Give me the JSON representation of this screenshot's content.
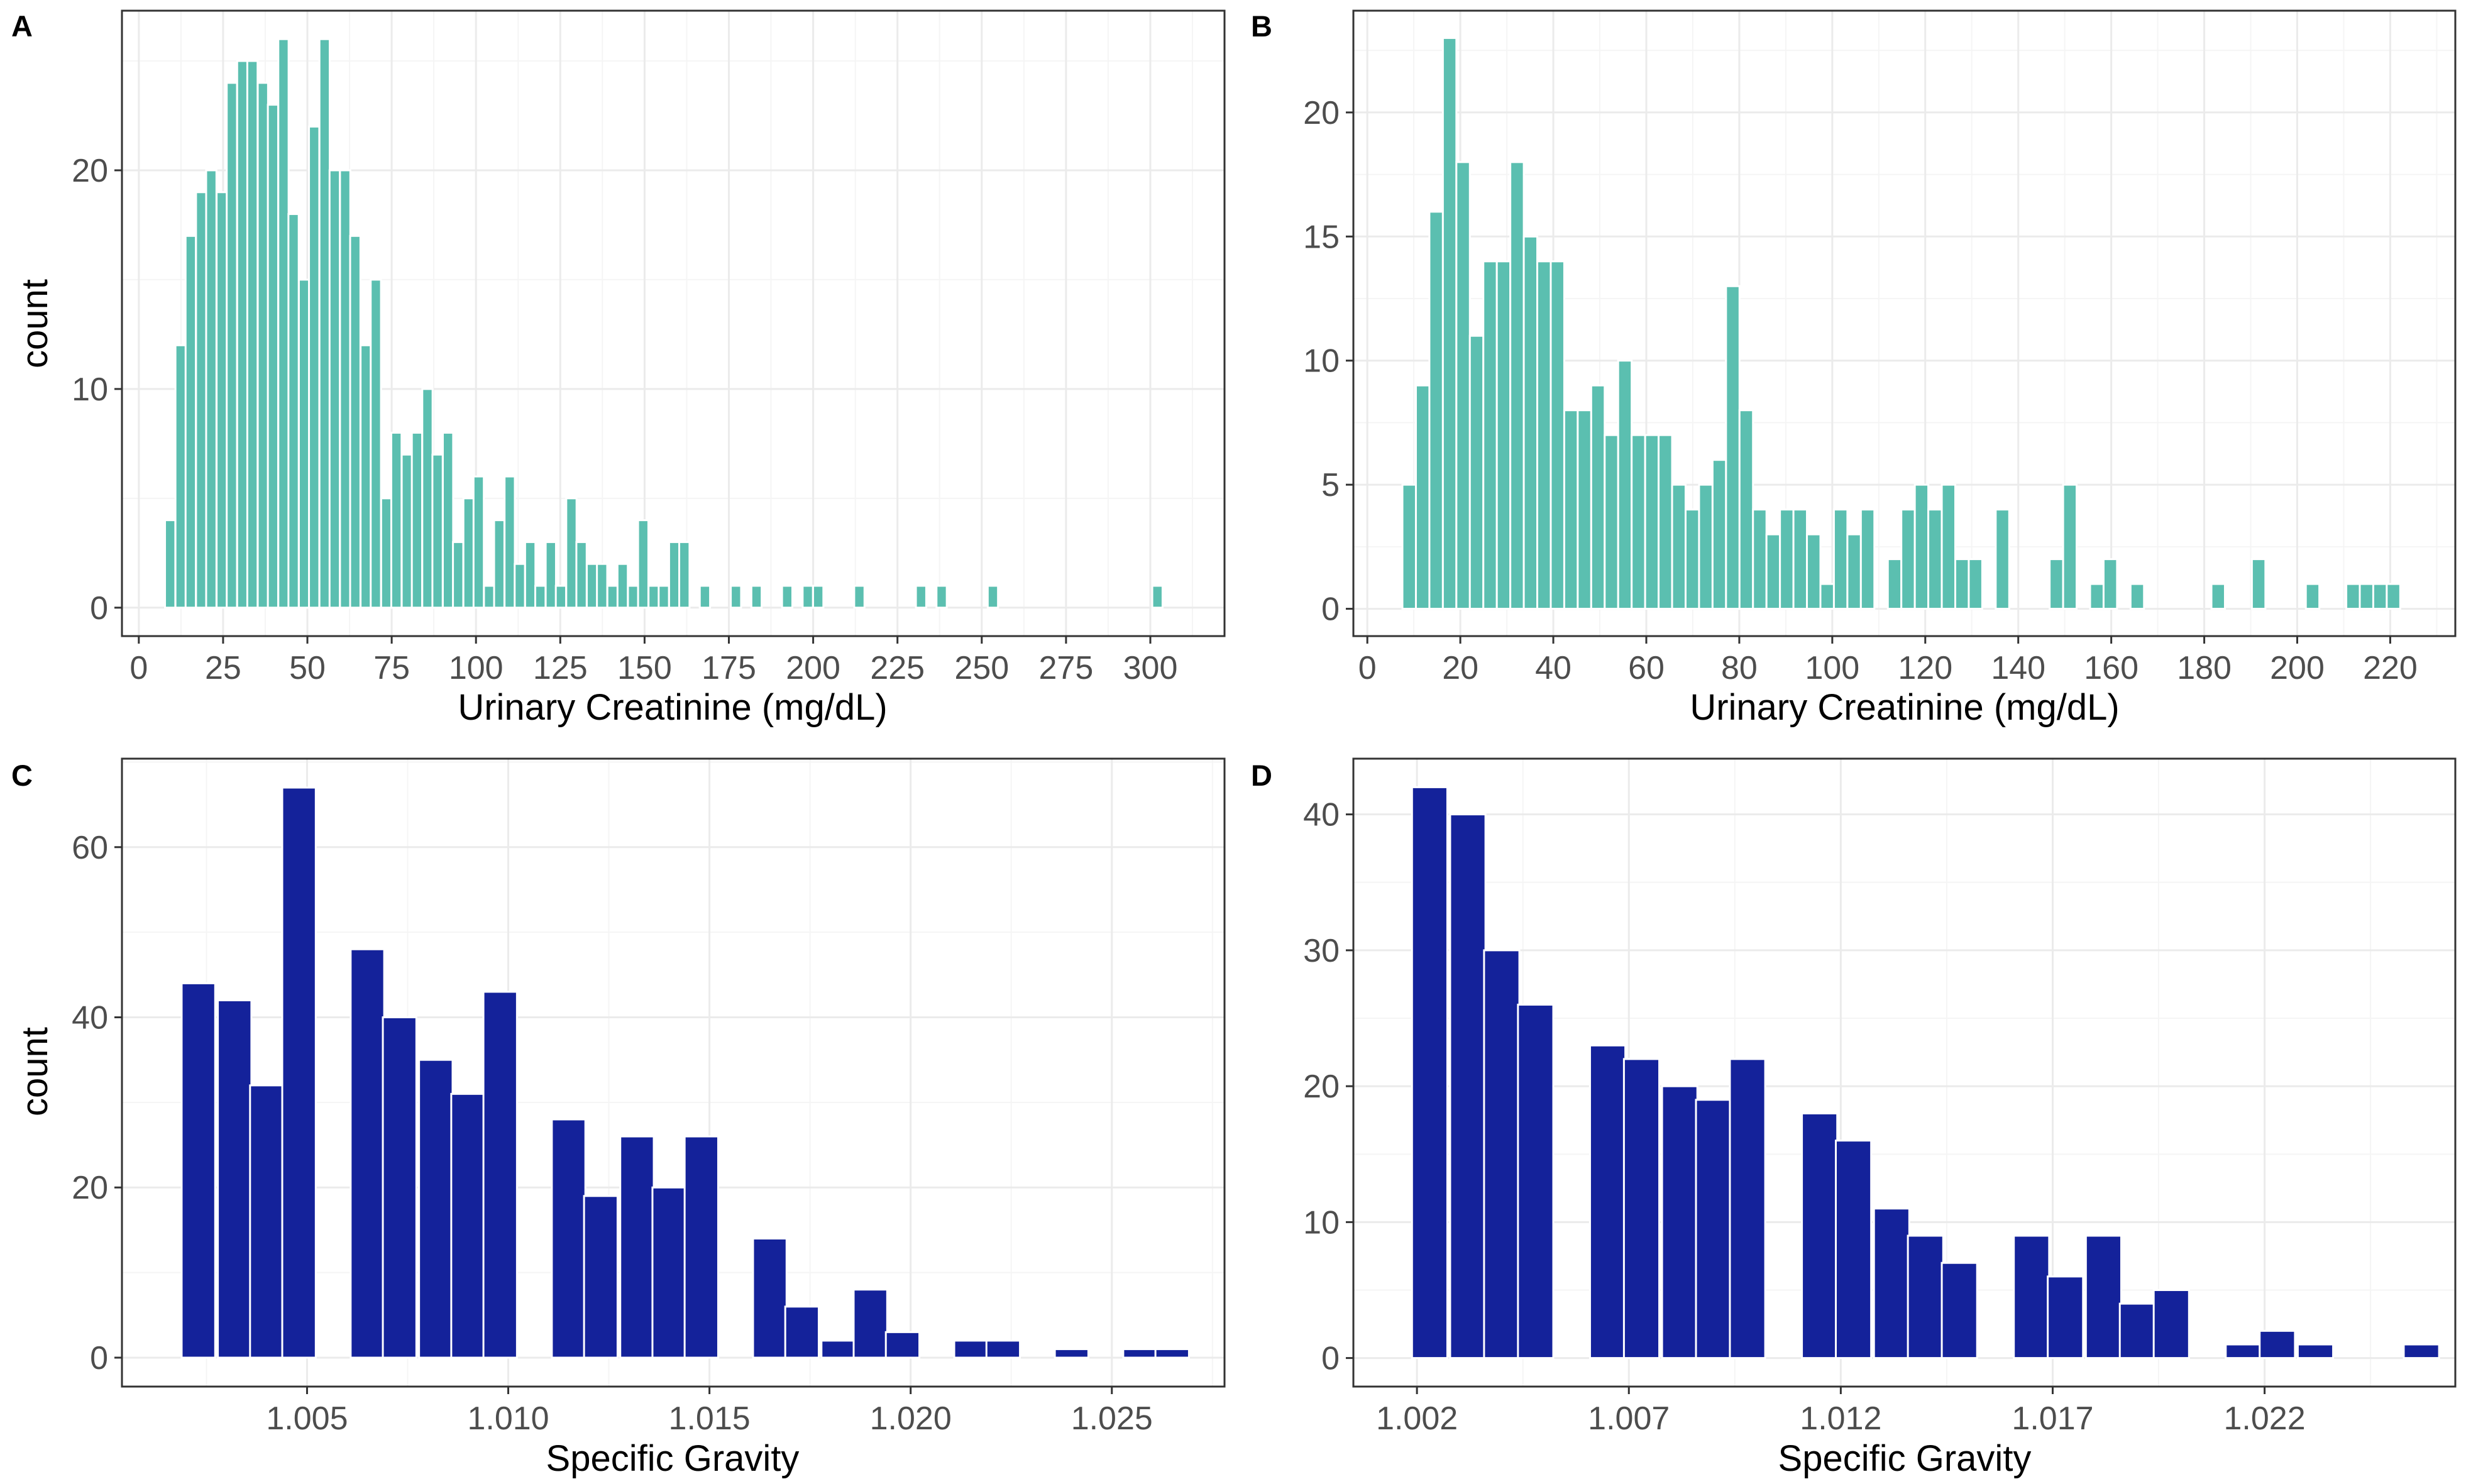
{
  "figure": {
    "panel_labels": [
      "A",
      "B",
      "C",
      "D"
    ]
  },
  "colors": {
    "teal": "#5bbfb0",
    "navy": "#14229a",
    "grid_major": "#ebebeb",
    "grid_minor": "#f5f5f5",
    "panel_border": "#333333",
    "tick_text": "#4d4d4d"
  },
  "chart_data": [
    {
      "panel": "A",
      "type": "bar",
      "subtype": "histogram",
      "xlabel": "Urinary Creatinine (mg/dL)",
      "ylabel": "count",
      "xlim": [
        -5,
        322
      ],
      "ylim": [
        -1.3,
        27.3
      ],
      "x_ticks": [
        0,
        25,
        50,
        75,
        100,
        125,
        150,
        175,
        200,
        225,
        250,
        275,
        300
      ],
      "x_tick_labels": [
        "0",
        "25",
        "50",
        "75",
        "100",
        "125",
        "150",
        "175",
        "200",
        "225",
        "250",
        "275",
        "300"
      ],
      "y_ticks": [
        0,
        10,
        20
      ],
      "y_tick_labels": [
        "0",
        "10",
        "20"
      ],
      "bin_width": 3.05,
      "x": [
        9.3,
        12.4,
        15.4,
        18.5,
        21.5,
        24.6,
        27.6,
        30.7,
        33.7,
        36.8,
        39.8,
        42.9,
        45.9,
        49.0,
        52.0,
        55.1,
        58.1,
        61.2,
        64.2,
        67.3,
        70.3,
        73.4,
        76.4,
        79.5,
        82.5,
        85.6,
        88.6,
        91.7,
        94.7,
        97.8,
        100.8,
        103.9,
        106.9,
        110.0,
        113.0,
        116.1,
        119.1,
        122.2,
        125.2,
        128.3,
        131.3,
        134.4,
        137.4,
        140.5,
        143.5,
        146.6,
        149.6,
        152.7,
        155.7,
        158.8,
        161.8,
        167.9,
        177.1,
        183.2,
        192.3,
        198.4,
        201.5,
        213.7,
        232.0,
        238.1,
        253.3,
        302.1
      ],
      "values": [
        4,
        12,
        17,
        19,
        20,
        19,
        24,
        25,
        25,
        24,
        23,
        26,
        18,
        15,
        22,
        26,
        20,
        20,
        17,
        12,
        15,
        5,
        8,
        7,
        8,
        10,
        7,
        8,
        3,
        5,
        6,
        1,
        4,
        6,
        2,
        3,
        1,
        3,
        1,
        5,
        3,
        2,
        2,
        1,
        2,
        1,
        4,
        1,
        1,
        3,
        3,
        1,
        1,
        1,
        1,
        1,
        1,
        1,
        1,
        1,
        1,
        1
      ],
      "color": "#5bbfb0"
    },
    {
      "panel": "B",
      "type": "bar",
      "subtype": "histogram",
      "xlabel": "Urinary Creatinine (mg/dL)",
      "ylabel": "",
      "xlim": [
        -3,
        234
      ],
      "ylim": [
        -1.1,
        24.1
      ],
      "x_ticks": [
        0,
        20,
        40,
        60,
        80,
        100,
        120,
        140,
        160,
        180,
        200,
        220
      ],
      "x_tick_labels": [
        "0",
        "20",
        "40",
        "60",
        "80",
        "100",
        "120",
        "140",
        "160",
        "180",
        "200",
        "220"
      ],
      "y_ticks": [
        0,
        5,
        10,
        15,
        20
      ],
      "y_tick_labels": [
        "0",
        "5",
        "10",
        "15",
        "20"
      ],
      "bin_width": 2.9,
      "x": [
        9.0,
        11.9,
        14.8,
        17.7,
        20.6,
        23.5,
        26.4,
        29.3,
        32.2,
        35.1,
        38.0,
        40.9,
        43.8,
        46.7,
        49.6,
        52.5,
        55.4,
        58.3,
        61.2,
        64.1,
        67.0,
        69.9,
        72.8,
        75.7,
        78.6,
        81.5,
        84.4,
        87.3,
        90.2,
        93.1,
        96.0,
        98.9,
        101.8,
        104.7,
        107.6,
        113.4,
        116.3,
        119.2,
        122.1,
        125.0,
        127.9,
        130.8,
        136.6,
        148.2,
        151.1,
        156.9,
        159.8,
        165.6,
        183.0,
        191.7,
        203.3,
        212.0,
        214.9,
        217.8,
        220.7
      ],
      "values": [
        5,
        9,
        16,
        23,
        18,
        11,
        14,
        14,
        18,
        15,
        14,
        14,
        8,
        8,
        9,
        7,
        10,
        7,
        7,
        7,
        5,
        4,
        5,
        6,
        13,
        8,
        4,
        3,
        4,
        4,
        3,
        1,
        4,
        3,
        4,
        2,
        4,
        5,
        4,
        5,
        2,
        2,
        4,
        2,
        5,
        1,
        2,
        1,
        1,
        2,
        1,
        1,
        1,
        1,
        1
      ],
      "color": "#5bbfb0"
    },
    {
      "panel": "C",
      "type": "bar",
      "subtype": "histogram",
      "xlabel": "Specific Gravity",
      "ylabel": "count",
      "xlim": [
        1.0004,
        1.0278
      ],
      "ylim": [
        -3.4,
        70.4
      ],
      "x_ticks": [
        1.005,
        1.01,
        1.015,
        1.02,
        1.025
      ],
      "x_tick_labels": [
        "1.005",
        "1.010",
        "1.015",
        "1.020",
        "1.025"
      ],
      "y_ticks": [
        0,
        20,
        40,
        60
      ],
      "y_tick_labels": [
        "0",
        "20",
        "40",
        "60"
      ],
      "bin_width": 0.000833,
      "x": [
        1.0023,
        1.0032,
        1.004,
        1.0048,
        1.0065,
        1.0073,
        1.0082,
        1.009,
        1.0098,
        1.0115,
        1.0123,
        1.0132,
        1.014,
        1.0148,
        1.0165,
        1.0173,
        1.0182,
        1.019,
        1.0198,
        1.0215,
        1.0223,
        1.024,
        1.0257,
        1.0265
      ],
      "values": [
        44,
        42,
        32,
        67,
        48,
        40,
        35,
        31,
        43,
        28,
        19,
        26,
        20,
        26,
        14,
        6,
        2,
        8,
        3,
        2,
        2,
        1,
        1,
        1
      ],
      "color": "#14229a"
    },
    {
      "panel": "D",
      "type": "bar",
      "subtype": "histogram",
      "xlabel": "Specific Gravity",
      "ylabel": "",
      "xlim": [
        1.0005,
        1.0265
      ],
      "ylim": [
        -2.1,
        44.1
      ],
      "x_ticks": [
        1.002,
        1.007,
        1.012,
        1.017,
        1.022
      ],
      "x_tick_labels": [
        "1.002",
        "1.007",
        "1.012",
        "1.017",
        "1.022"
      ],
      "y_ticks": [
        0,
        10,
        20,
        30,
        40
      ],
      "y_tick_labels": [
        "0",
        "10",
        "20",
        "30",
        "40"
      ],
      "bin_width": 0.000833,
      "x": [
        1.0023,
        1.0032,
        1.004,
        1.0048,
        1.0065,
        1.0073,
        1.0082,
        1.009,
        1.0098,
        1.0115,
        1.0123,
        1.0132,
        1.014,
        1.0148,
        1.0165,
        1.0173,
        1.0182,
        1.019,
        1.0198,
        1.0215,
        1.0223,
        1.0232,
        1.0257
      ],
      "values": [
        42,
        40,
        30,
        26,
        23,
        22,
        20,
        19,
        22,
        18,
        16,
        11,
        9,
        7,
        9,
        6,
        9,
        4,
        5,
        1,
        2,
        1,
        1
      ],
      "color": "#14229a"
    }
  ]
}
